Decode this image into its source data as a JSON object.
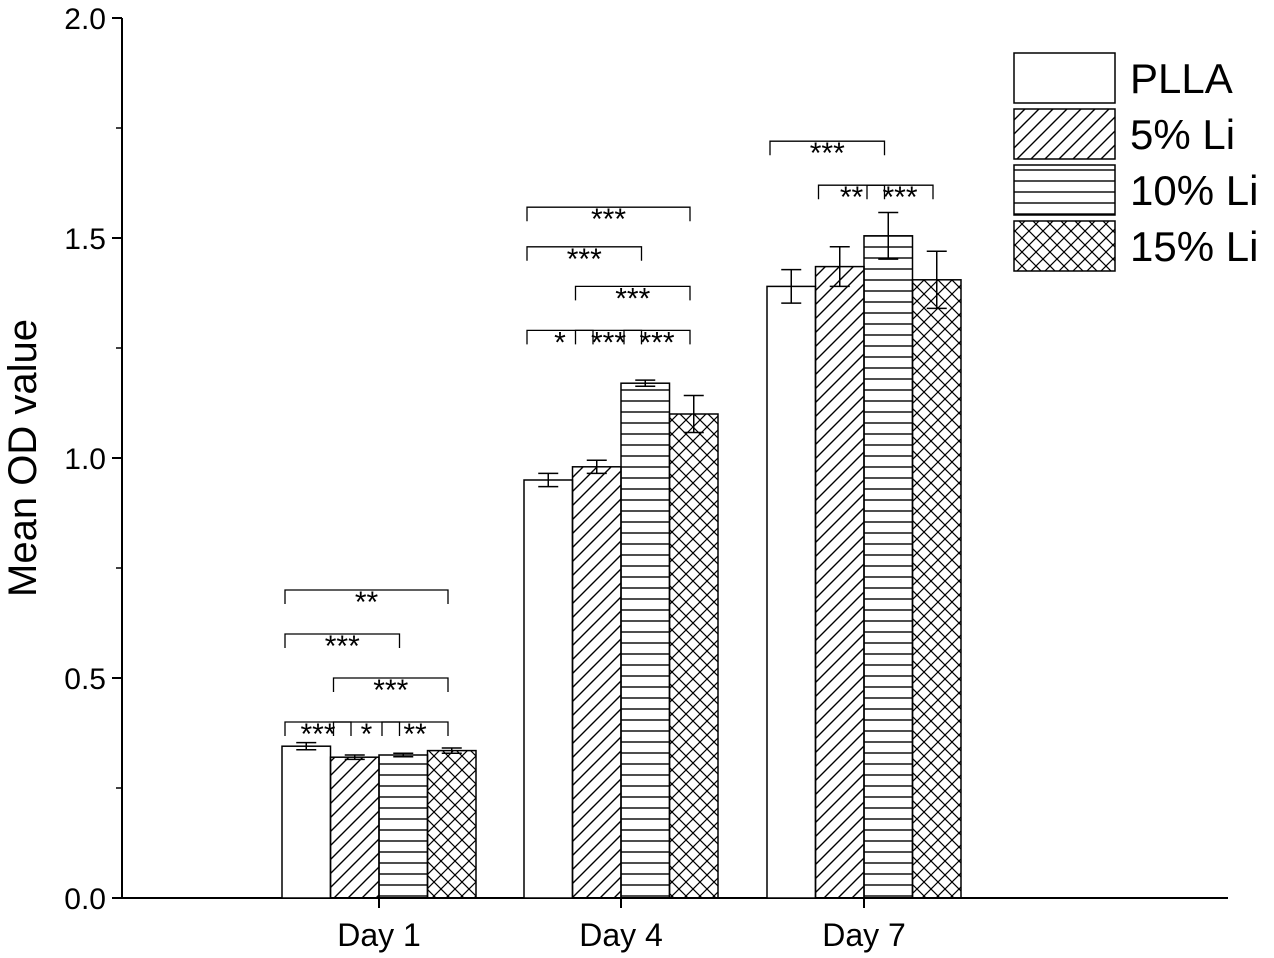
{
  "chart_data": {
    "type": "bar",
    "title": "",
    "xlabel": "",
    "ylabel": "Mean OD value",
    "ylim": [
      0,
      2.0
    ],
    "yticks": [
      "0.0",
      "0.5",
      "1.0",
      "1.5",
      "2.0"
    ],
    "categories": [
      "Day 1",
      "Day 4",
      "Day 7"
    ],
    "series": [
      {
        "name": "PLLA",
        "pattern": "none",
        "values": [
          0.345,
          0.95,
          1.39
        ],
        "errors": [
          0.008,
          0.015,
          0.038
        ]
      },
      {
        "name": "5% Li",
        "pattern": "diagonal",
        "values": [
          0.32,
          0.98,
          1.435
        ],
        "errors": [
          0.005,
          0.015,
          0.045
        ]
      },
      {
        "name": "10% Li",
        "pattern": "horizontal",
        "values": [
          0.325,
          1.17,
          1.505
        ],
        "errors": [
          0.004,
          0.007,
          0.053
        ]
      },
      {
        "name": "15% Li",
        "pattern": "crosshatch",
        "values": [
          0.335,
          1.1,
          1.405
        ],
        "errors": [
          0.006,
          0.042,
          0.065
        ]
      }
    ],
    "significance": [
      {
        "category": "Day 1",
        "from": 0,
        "to": 1,
        "label": "***",
        "level": 0.4
      },
      {
        "category": "Day 1",
        "from": 1,
        "to": 2,
        "label": "*",
        "level": 0.4
      },
      {
        "category": "Day 1",
        "from": 2,
        "to": 3,
        "label": "**",
        "level": 0.4
      },
      {
        "category": "Day 1",
        "from": 1,
        "to": 3,
        "label": "***",
        "level": 0.5
      },
      {
        "category": "Day 1",
        "from": 0,
        "to": 2,
        "label": "***",
        "level": 0.6
      },
      {
        "category": "Day 1",
        "from": 0,
        "to": 3,
        "label": "**",
        "level": 0.7
      },
      {
        "category": "Day 4",
        "from": 0,
        "to": 1,
        "label": "*",
        "level": 1.29
      },
      {
        "category": "Day 4",
        "from": 1,
        "to": 2,
        "label": "***",
        "level": 1.29
      },
      {
        "category": "Day 4",
        "from": 2,
        "to": 3,
        "label": "***",
        "level": 1.29
      },
      {
        "category": "Day 4",
        "from": 1,
        "to": 3,
        "label": "***",
        "level": 1.39
      },
      {
        "category": "Day 4",
        "from": 0,
        "to": 2,
        "label": "***",
        "level": 1.48
      },
      {
        "category": "Day 4",
        "from": 0,
        "to": 3,
        "label": "***",
        "level": 1.57
      },
      {
        "category": "Day 7",
        "from": 1,
        "to": 2,
        "label": "**",
        "level": 1.62
      },
      {
        "category": "Day 7",
        "from": 2,
        "to": 3,
        "label": "***",
        "level": 1.62
      },
      {
        "category": "Day 7",
        "from": 0,
        "to": 2,
        "label": "***",
        "level": 1.72
      }
    ],
    "grid": false,
    "legend_position": "top-right"
  }
}
